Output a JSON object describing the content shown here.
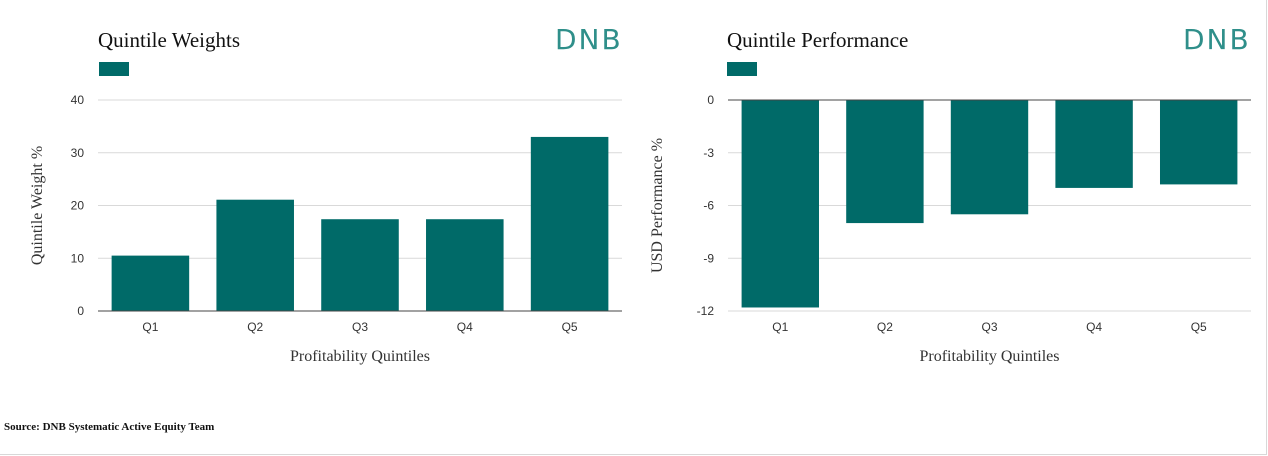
{
  "source": "Source: DNB Systematic Active Equity Team",
  "logo_text": "DNB",
  "bar_color": "#006a68",
  "logo_color": "#2f8f8a",
  "chart_data": [
    {
      "type": "bar",
      "title": "Quintile Weights",
      "categories": [
        "Q1",
        "Q2",
        "Q3",
        "Q4",
        "Q5"
      ],
      "values": [
        10.5,
        21.1,
        17.4,
        17.4,
        33.0
      ],
      "xlabel": "Profitability Quintiles",
      "ylabel": "Quintile Weight %",
      "ylim": [
        0,
        40
      ],
      "yticks": [
        0,
        10,
        20,
        30,
        40
      ],
      "grid": true,
      "legend": "top-left"
    },
    {
      "type": "bar",
      "title": "Quintile Performance",
      "categories": [
        "Q1",
        "Q2",
        "Q3",
        "Q4",
        "Q5"
      ],
      "values": [
        -11.8,
        -7.0,
        -6.5,
        -5.0,
        -4.8
      ],
      "xlabel": "Profitability Quintiles",
      "ylabel": "USD Performance %",
      "ylim": [
        -12,
        0
      ],
      "yticks": [
        0,
        -3,
        -6,
        -9,
        -12
      ],
      "grid": true,
      "legend": "top-left"
    }
  ]
}
